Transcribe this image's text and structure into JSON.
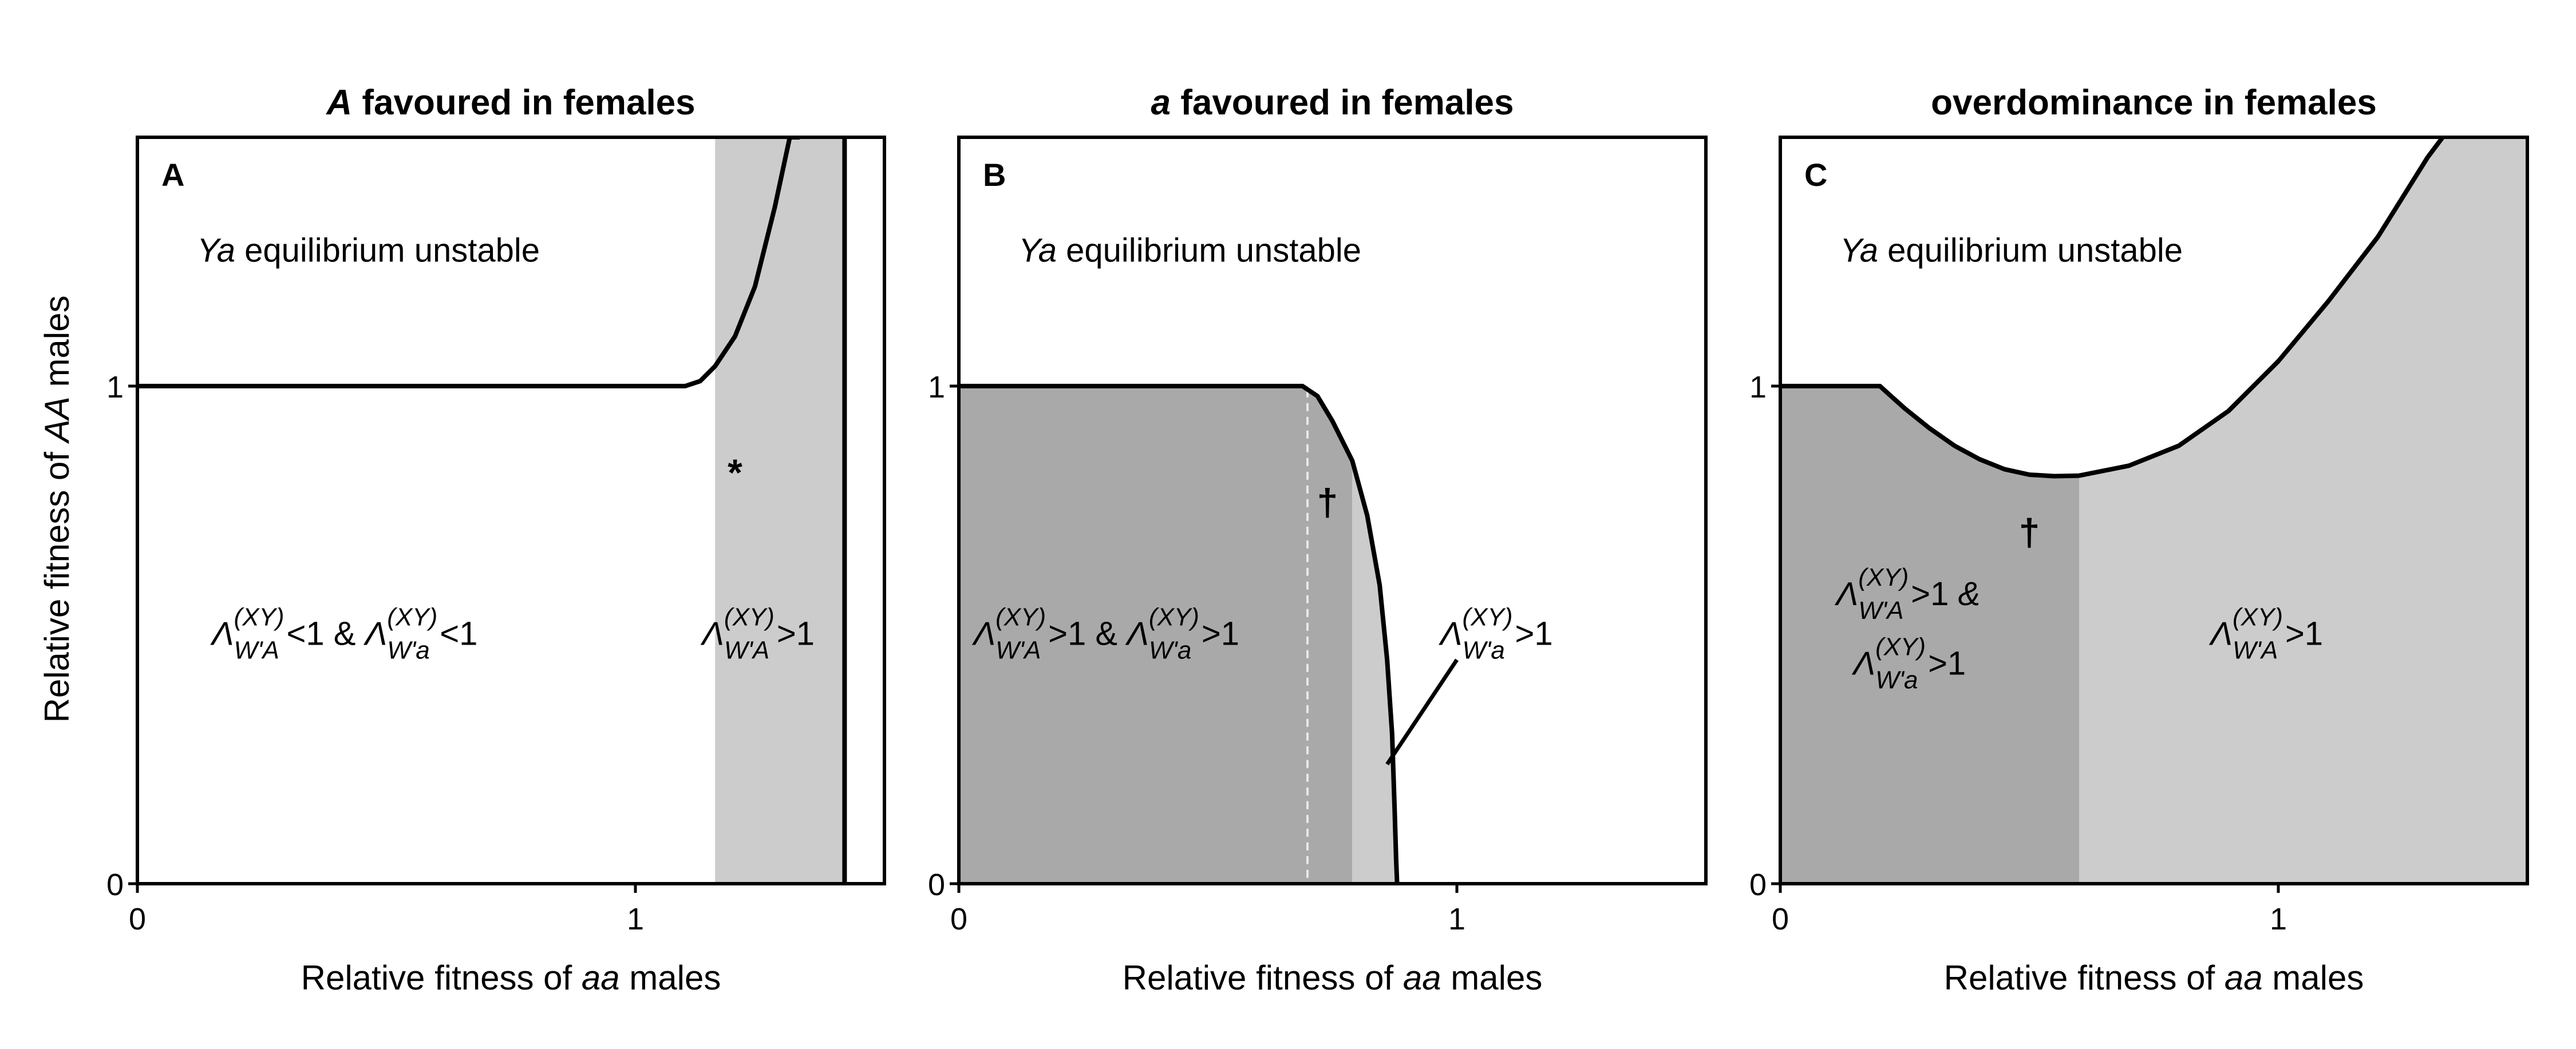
{
  "colors": {
    "dark_region": "#a9a9a9",
    "light_region": "#cccccc",
    "unshaded": "#ffffff",
    "boundary": "#000000"
  },
  "y_axis_label": {
    "pre": "Relative fitness of ",
    "ital": "AA",
    "post": " males"
  },
  "chart_data": [
    {
      "type": "area",
      "panel": "A",
      "title": {
        "ital": "A",
        "rest": " favoured in females"
      },
      "xlabel": {
        "pre": "Relative fitness of ",
        "ital": "aa",
        "post": " males"
      },
      "xlim": [
        0,
        1.5
      ],
      "ylim": [
        0,
        1.5
      ],
      "xticks": [
        0,
        1
      ],
      "yticks": [
        0,
        1
      ],
      "boundary": {
        "x": [
          0,
          0.2,
          0.4,
          0.6,
          0.8,
          1.0,
          1.1,
          1.13,
          1.16,
          1.2,
          1.24,
          1.28,
          1.31,
          1.33
        ],
        "y": [
          1,
          1,
          1,
          1,
          1,
          1,
          1,
          1.01,
          1.04,
          1.1,
          1.2,
          1.36,
          1.5,
          1.5
        ]
      },
      "vertical_line_x": 1.42,
      "regions": [
        {
          "shade": "light",
          "x_from": 1.16,
          "x_to": 1.42,
          "y_from": 0,
          "y_to": 1.5
        }
      ],
      "annotations": [
        {
          "role": "ya",
          "italic": "Ya",
          "text": " equilibrium unstable",
          "x": 0.12,
          "y": 1.25
        },
        {
          "role": "marker",
          "text": "*",
          "x": 1.2,
          "y": 0.8
        }
      ],
      "region_labels": [
        {
          "parts": [
            {
              "L": "Λ",
              "sup": "(XY)",
              "sub": "W'A",
              "op": "<1"
            },
            {
              "joiner": " & "
            },
            {
              "L": "Λ",
              "sup": "(XY)",
              "sub": "W'a",
              "op": "<1"
            }
          ],
          "x": 0.5,
          "y": 0.48
        },
        {
          "parts": [
            {
              "L": "Λ",
              "sup": "(XY)",
              "sub": "W'A",
              "op": ">1"
            }
          ],
          "x": 1.29,
          "y": 0.48
        }
      ]
    },
    {
      "type": "area",
      "panel": "B",
      "title": {
        "ital": "a",
        "rest": " favoured in females"
      },
      "xlabel": {
        "pre": "Relative fitness of ",
        "ital": "aa",
        "post": " males"
      },
      "xlim": [
        0,
        1.5
      ],
      "ylim": [
        0,
        1.5
      ],
      "xticks": [
        0,
        1
      ],
      "yticks": [
        0,
        1
      ],
      "boundary": {
        "x": [
          0,
          0.2,
          0.4,
          0.6,
          0.69,
          0.72,
          0.75,
          0.79,
          0.82,
          0.845,
          0.86,
          0.87,
          0.875,
          0.878,
          0.88
        ],
        "y": [
          1,
          1,
          1,
          1,
          1,
          0.98,
          0.93,
          0.85,
          0.74,
          0.6,
          0.45,
          0.3,
          0.15,
          0.05,
          0
        ]
      },
      "dashed_line_x": 0.7,
      "regions": [
        {
          "shade": "dark",
          "x_from": 0,
          "x_to": 0.79,
          "under_boundary": true
        },
        {
          "shade": "light",
          "x_from": 0.79,
          "x_to": 0.88,
          "under_boundary": true
        }
      ],
      "pointer": {
        "x1": 1.0,
        "y1": 0.45,
        "x2": 0.86,
        "y2": 0.24
      },
      "annotations": [
        {
          "role": "ya",
          "italic": "Ya",
          "text": " equilibrium unstable",
          "x": 0.12,
          "y": 1.25
        },
        {
          "role": "marker",
          "text": "†",
          "x": 0.74,
          "y": 0.74
        }
      ],
      "region_labels": [
        {
          "parts": [
            {
              "L": "Λ",
              "sup": "(XY)",
              "sub": "W'A",
              "op": ">1"
            },
            {
              "joiner": " & "
            },
            {
              "L": "Λ",
              "sup": "(XY)",
              "sub": "W'a",
              "op": ">1"
            }
          ],
          "x": 0.38,
          "y": 0.48
        },
        {
          "parts": [
            {
              "L": "Λ",
              "sup": "(XY)",
              "sub": "W'a",
              "op": ">1"
            }
          ],
          "x": 1.12,
          "y": 0.48
        }
      ]
    },
    {
      "type": "area",
      "panel": "C",
      "title": {
        "ital": "",
        "rest": "overdominance in females"
      },
      "xlabel": {
        "pre": "Relative fitness of ",
        "ital": "aa",
        "post": " males"
      },
      "xlim": [
        0,
        1.5
      ],
      "ylim": [
        0,
        1.5
      ],
      "xticks": [
        0,
        1
      ],
      "yticks": [
        0,
        1
      ],
      "boundary": {
        "x": [
          0,
          0.1,
          0.2,
          0.25,
          0.3,
          0.35,
          0.4,
          0.45,
          0.5,
          0.55,
          0.6,
          0.7,
          0.8,
          0.9,
          1.0,
          1.1,
          1.2,
          1.3,
          1.33
        ],
        "y": [
          1,
          1,
          1,
          0.955,
          0.915,
          0.88,
          0.853,
          0.833,
          0.822,
          0.819,
          0.82,
          0.84,
          0.88,
          0.95,
          1.05,
          1.17,
          1.3,
          1.46,
          1.5
        ]
      },
      "regions": [
        {
          "shade": "dark",
          "x_from": 0,
          "x_to": 0.6,
          "under_boundary": true
        },
        {
          "shade": "light",
          "x_from": 0.6,
          "x_to": 1.5,
          "under_boundary": true
        }
      ],
      "annotations": [
        {
          "role": "ya",
          "italic": "Ya",
          "text": " equilibrium unstable",
          "x": 0.12,
          "y": 1.25
        },
        {
          "role": "marker",
          "text": "†",
          "x": 0.5,
          "y": 0.68
        }
      ],
      "region_labels": [
        {
          "parts": [
            {
              "L": "Λ",
              "sup": "(XY)",
              "sub": "W'A",
              "op": ">1"
            },
            {
              "joiner": " &",
              "italic": true
            }
          ],
          "x": 0.3,
          "y": 0.56
        },
        {
          "parts": [
            {
              "L": "Λ",
              "sup": "(XY)",
              "sub": "W'a",
              "op": ">1"
            }
          ],
          "x": 0.3,
          "y": 0.42
        },
        {
          "parts": [
            {
              "L": "Λ",
              "sup": "(XY)",
              "sub": "W'A",
              "op": ">1"
            }
          ],
          "x": 1.02,
          "y": 0.48
        }
      ]
    }
  ]
}
